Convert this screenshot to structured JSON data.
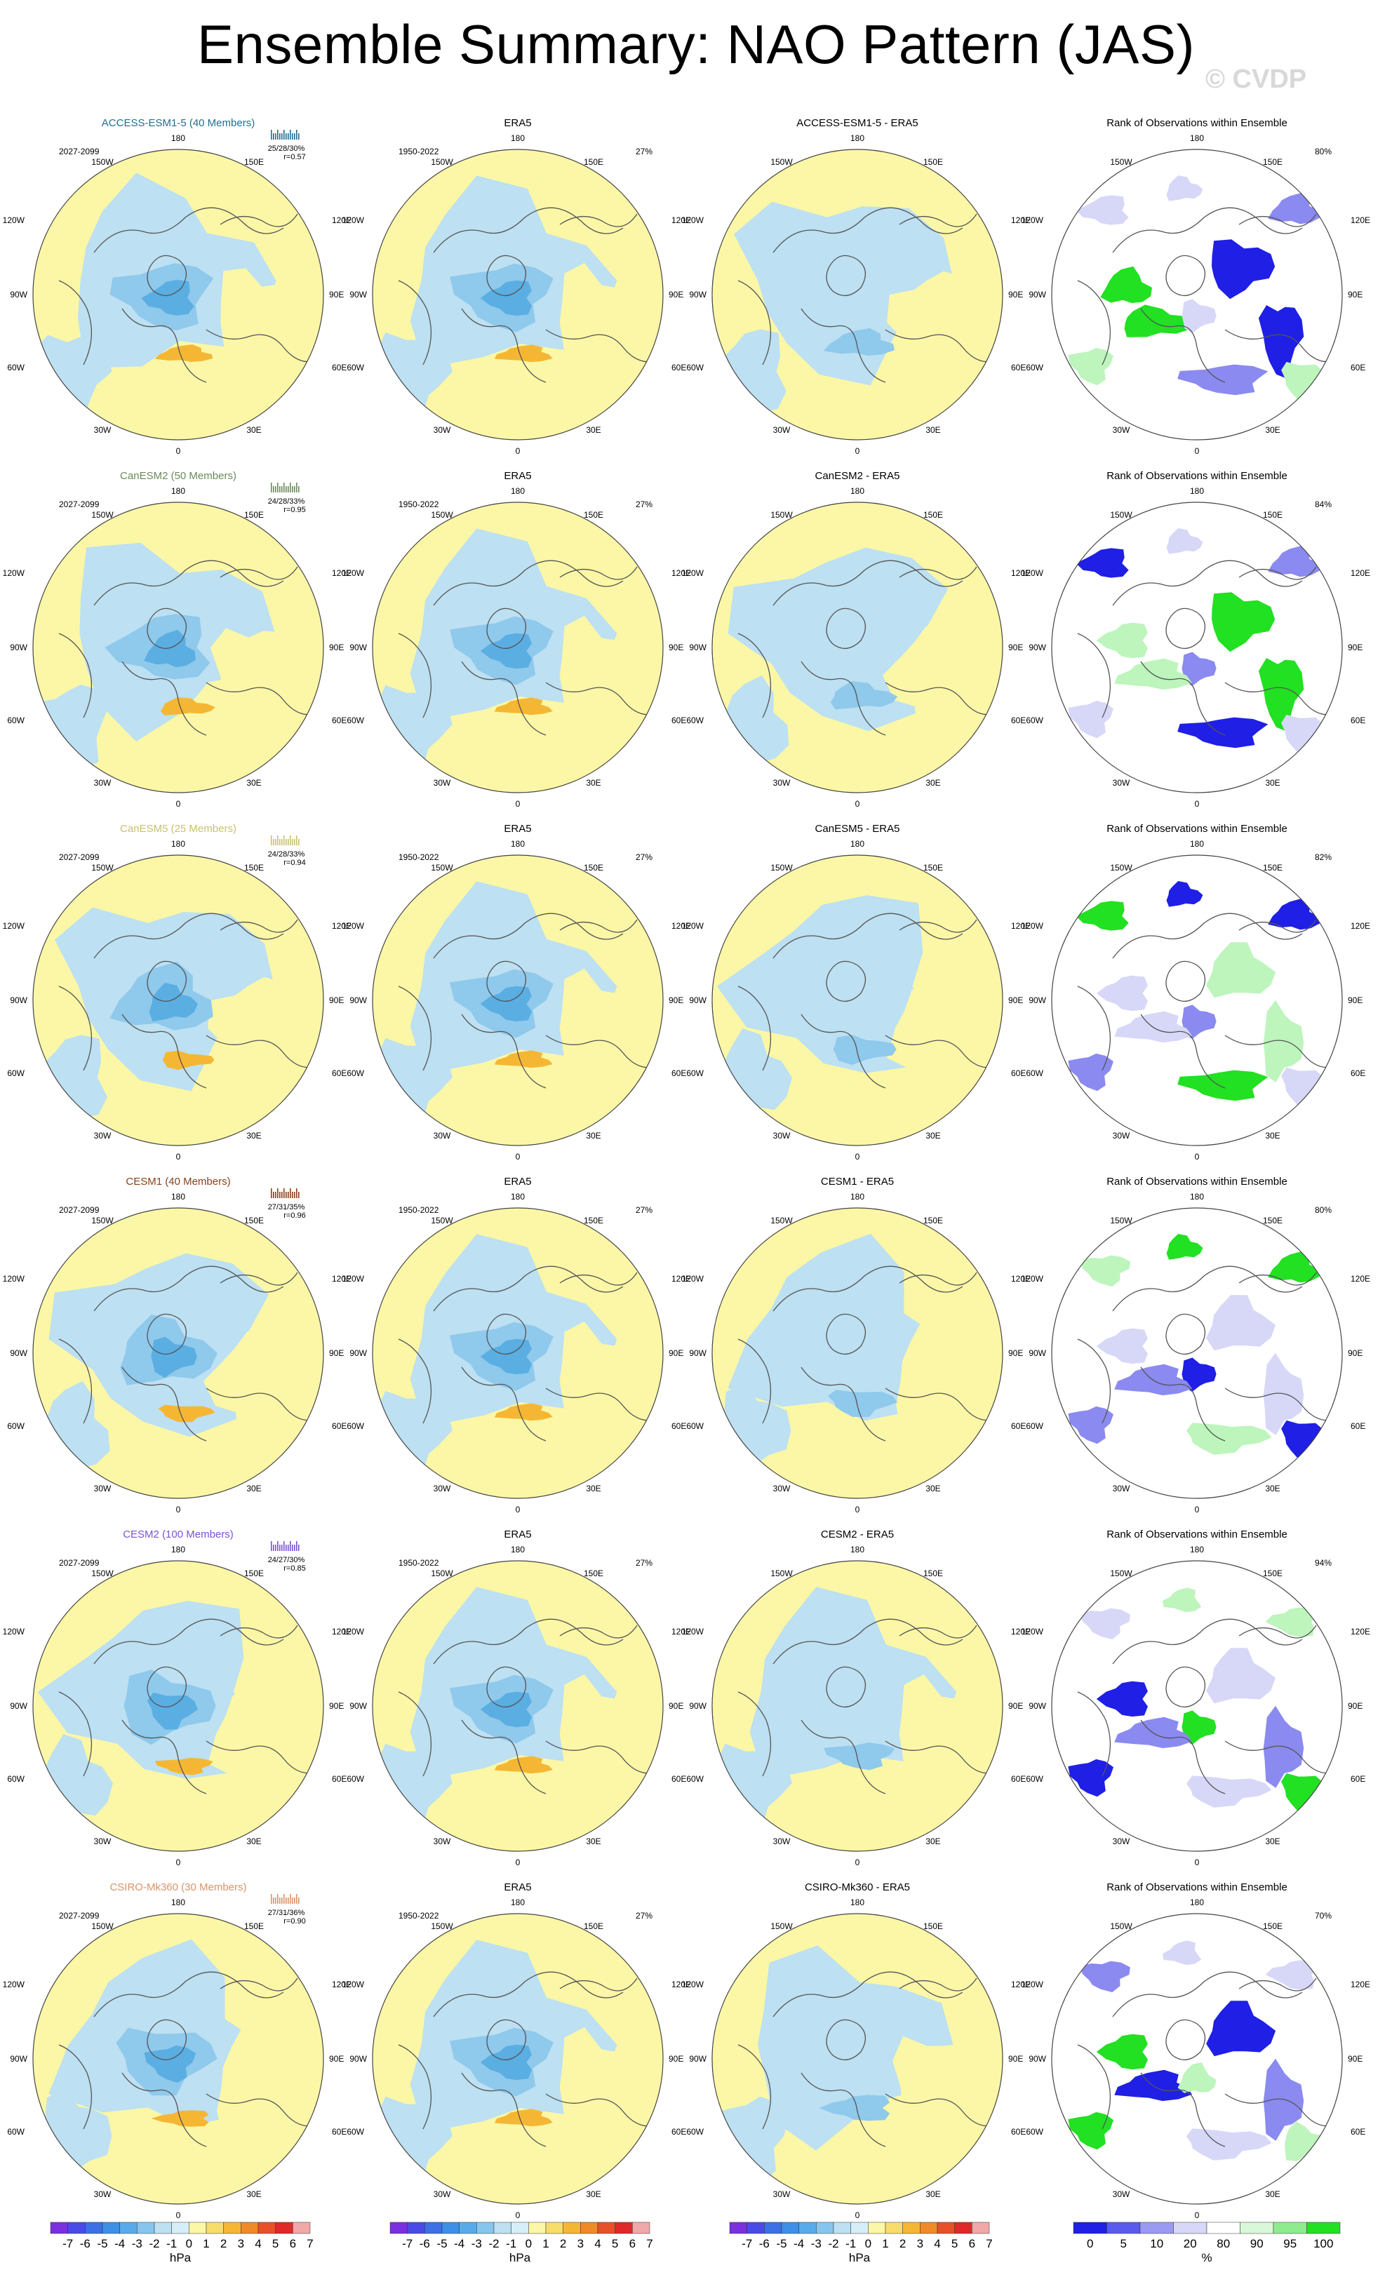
{
  "title": "Ensemble Summary: NAO Pattern (JAS)",
  "watermark": "© CVDP",
  "colors": {
    "ocean_neg": "#bde0f2",
    "pos_yellow": "#fbf7a6",
    "neg_mid": "#8fc9ec",
    "neg_deep": "#5aaee2",
    "pos_orange": "#f5b733",
    "land": "#555555",
    "rank_dark": "#1f1fe6",
    "rank_mid": "#8a8af0",
    "rank_light": "#d7d7f8",
    "rank_green": "#22e022",
    "rank_lightgreen": "#bdf5bd"
  },
  "longitude_labels": [
    "180",
    "150W",
    "150E",
    "120W",
    "120E",
    "90W",
    "90E",
    "60W",
    "60E",
    "30W",
    "30E",
    "0"
  ],
  "chart_data": {
    "type": "table",
    "models": [
      {
        "name": "ACCESS-ESM1-5 (40 Members)",
        "short": "ACCESS-ESM1-5",
        "color": "#1f6f8f",
        "period": "2027-2099",
        "stats": "25/28/30%",
        "r": "r=0.57",
        "rank_pct": "80%"
      },
      {
        "name": "CanESM2 (50 Members)",
        "short": "CanESM2",
        "color": "#6a8a5a",
        "period": "2027-2099",
        "stats": "24/28/33%",
        "r": "r=0.95",
        "rank_pct": "84%"
      },
      {
        "name": "CanESM5 (25 Members)",
        "short": "CanESM5",
        "color": "#c9c070",
        "period": "2027-2099",
        "stats": "24/28/33%",
        "r": "r=0.94",
        "rank_pct": "82%"
      },
      {
        "name": "CESM1 (40 Members)",
        "short": "CESM1",
        "color": "#8a3f18",
        "period": "2027-2099",
        "stats": "27/31/35%",
        "r": "r=0.96",
        "rank_pct": "80%"
      },
      {
        "name": "CESM2 (100 Members)",
        "short": "CESM2",
        "color": "#7a52d8",
        "period": "2027-2099",
        "stats": "24/27/30%",
        "r": "r=0.85",
        "rank_pct": "94%"
      },
      {
        "name": "CSIRO-Mk360 (30 Members)",
        "short": "CSIRO-Mk360",
        "color": "#d8946a",
        "period": "2027-2099",
        "stats": "27/31/36%",
        "r": "r=0.90",
        "rank_pct": "70%"
      }
    ],
    "obs": {
      "name": "ERA5",
      "period": "1950-2022",
      "pct": "27%"
    },
    "diff_suffix": " - ERA5",
    "rank_title": "Rank of Observations within Ensemble",
    "colorbar_hpa": {
      "labels": [
        "-7",
        "-6",
        "-5",
        "-4",
        "-3",
        "-2",
        "-1",
        "0",
        "1",
        "2",
        "3",
        "4",
        "5",
        "6",
        "7"
      ],
      "colors": [
        "#7b2fe0",
        "#4a4ae6",
        "#3d6fe6",
        "#3d8fe8",
        "#58abea",
        "#86c6ee",
        "#bde0f2",
        "#d6eef8",
        "#fbf7a6",
        "#f8dc6a",
        "#f5b733",
        "#f08a26",
        "#e8502a",
        "#e02828",
        "#f0a8a8"
      ],
      "unit": "hPa"
    },
    "colorbar_rank": {
      "labels": [
        "0",
        "5",
        "10",
        "20",
        "80",
        "90",
        "95",
        "100"
      ],
      "colors": [
        "#1f1fe6",
        "#5a5aee",
        "#9a9af2",
        "#d7d7f8",
        "#ffffff",
        "#d9f8d9",
        "#8eec8e",
        "#22e022"
      ],
      "unit": "%"
    }
  }
}
